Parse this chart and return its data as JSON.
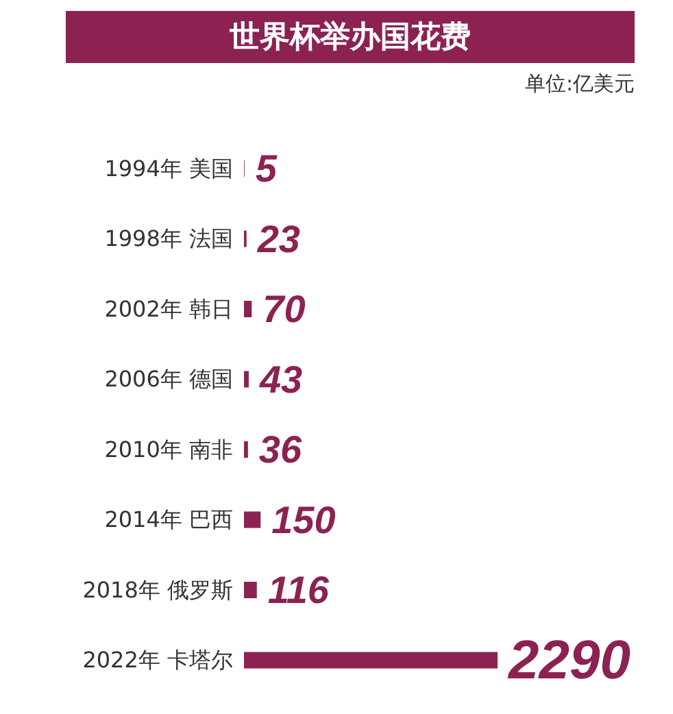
{
  "chart_data": {
    "type": "bar",
    "orientation": "horizontal",
    "title": "世界杯举办国花费",
    "subtitle": "单位:亿美元",
    "categories": [
      "1994年 美国",
      "1998年 法国",
      "2002年 韩日",
      "2006年 德国",
      "2010年 南非",
      "2014年 巴西",
      "2018年 俄罗斯",
      "2022年 卡塔尔"
    ],
    "values": [
      5,
      23,
      70,
      43,
      36,
      150,
      116,
      2290
    ],
    "data_labels": true,
    "color": "#8b2252",
    "tick_labels": "y"
  }
}
